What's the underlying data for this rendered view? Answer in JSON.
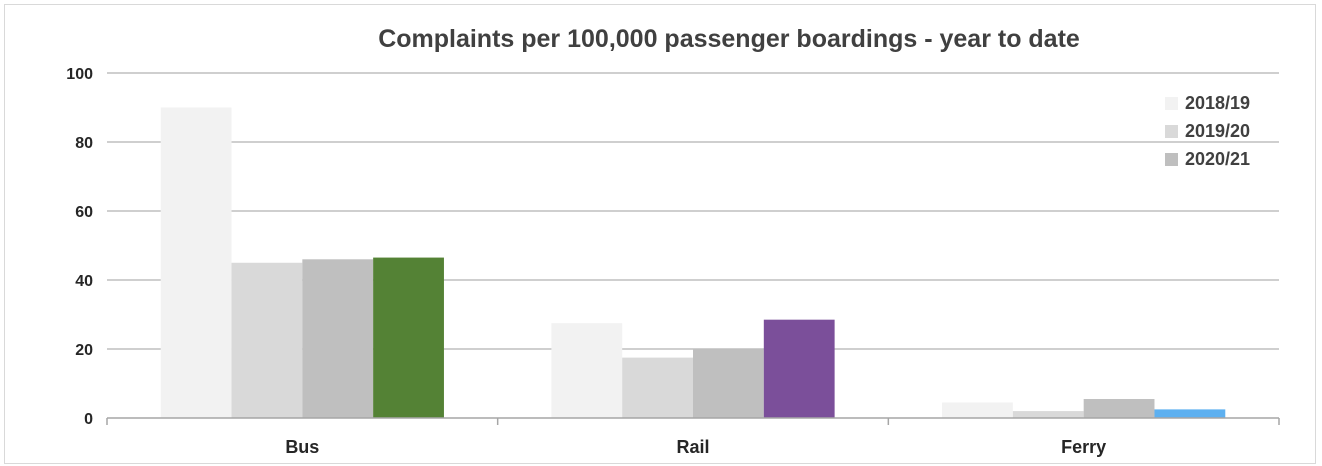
{
  "chart_data": {
    "type": "bar",
    "title": "Complaints per 100,000 passenger boardings - year to date",
    "xlabel": "",
    "ylabel": "",
    "categories": [
      "Bus",
      "Rail",
      "Ferry"
    ],
    "ylim": [
      0,
      100
    ],
    "yticks": [
      "0",
      "20",
      "40",
      "60",
      "80",
      "100"
    ],
    "grid": true,
    "legend_position": "top-right",
    "series": [
      {
        "name": "2018/19",
        "values": [
          90,
          27.5,
          4.5
        ],
        "color": "#f2f2f2"
      },
      {
        "name": "2019/20",
        "values": [
          45,
          17.5,
          2
        ],
        "color": "#d9d9d9"
      },
      {
        "name": "2020/21",
        "values": [
          46,
          20,
          5.5
        ],
        "color": "#bfbfbf"
      },
      {
        "name": "",
        "values": [
          46.5,
          28.5,
          2.5
        ],
        "colors": [
          "#548235",
          "#7b4f9a",
          "#5db0f0"
        ]
      }
    ]
  }
}
